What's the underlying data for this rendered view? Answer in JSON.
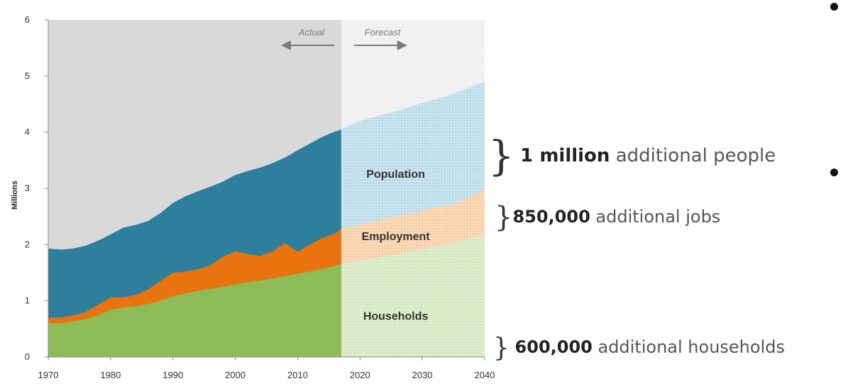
{
  "chart_data": {
    "type": "area",
    "stacked": false,
    "x": [
      1970,
      1972,
      1974,
      1976,
      1978,
      1980,
      1982,
      1984,
      1986,
      1988,
      1990,
      1992,
      1994,
      1996,
      1998,
      2000,
      2002,
      2004,
      2006,
      2008,
      2010,
      2012,
      2014,
      2016,
      2017,
      2020,
      2025,
      2030,
      2035,
      2040
    ],
    "xlim": [
      1970,
      2040
    ],
    "ylim": [
      0,
      6
    ],
    "ylabel": "Millions",
    "xticks": [
      "1970",
      "1980",
      "1990",
      "2000",
      "2010",
      "2020",
      "2030",
      "2040"
    ],
    "yticks": [
      "0",
      "1",
      "2",
      "3",
      "4",
      "5",
      "6"
    ],
    "grid": false,
    "forecast_start": 2017,
    "series": [
      {
        "name": "Population",
        "color": "#2e7f9e",
        "forecast_color": "#b7dbe8",
        "values": [
          1.93,
          1.91,
          1.93,
          1.98,
          2.07,
          2.18,
          2.3,
          2.35,
          2.42,
          2.56,
          2.74,
          2.86,
          2.95,
          3.03,
          3.12,
          3.24,
          3.31,
          3.37,
          3.45,
          3.55,
          3.68,
          3.8,
          3.92,
          4.01,
          4.05,
          4.2,
          4.35,
          4.52,
          4.68,
          4.9
        ]
      },
      {
        "name": "Employment",
        "color": "#e9730f",
        "forecast_color": "#f9cda2",
        "values": [
          0.7,
          0.7,
          0.74,
          0.8,
          0.93,
          1.06,
          1.06,
          1.1,
          1.2,
          1.35,
          1.5,
          1.52,
          1.56,
          1.63,
          1.78,
          1.88,
          1.83,
          1.8,
          1.88,
          2.03,
          1.87,
          2.0,
          2.12,
          2.2,
          2.28,
          2.35,
          2.48,
          2.6,
          2.72,
          2.98
        ]
      },
      {
        "name": "Households",
        "color": "#8dbb55",
        "forecast_color": "#d3e7bd",
        "values": [
          0.6,
          0.6,
          0.63,
          0.68,
          0.74,
          0.84,
          0.88,
          0.9,
          0.94,
          1.0,
          1.08,
          1.13,
          1.18,
          1.21,
          1.25,
          1.29,
          1.33,
          1.36,
          1.4,
          1.44,
          1.48,
          1.52,
          1.57,
          1.62,
          1.66,
          1.71,
          1.81,
          1.92,
          2.03,
          2.17
        ]
      }
    ],
    "phase_labels": {
      "actual": "Actual",
      "forecast": "Forecast"
    },
    "colors": {
      "actual_background": "#d9d9d9",
      "forecast_background": "#eeeeee"
    }
  },
  "annotations": [
    {
      "emphasis": "1 million",
      "rest": " additional people"
    },
    {
      "emphasis": "850,000",
      "rest": " additional jobs"
    },
    {
      "emphasis": "600,000",
      "rest": " additional households"
    }
  ]
}
